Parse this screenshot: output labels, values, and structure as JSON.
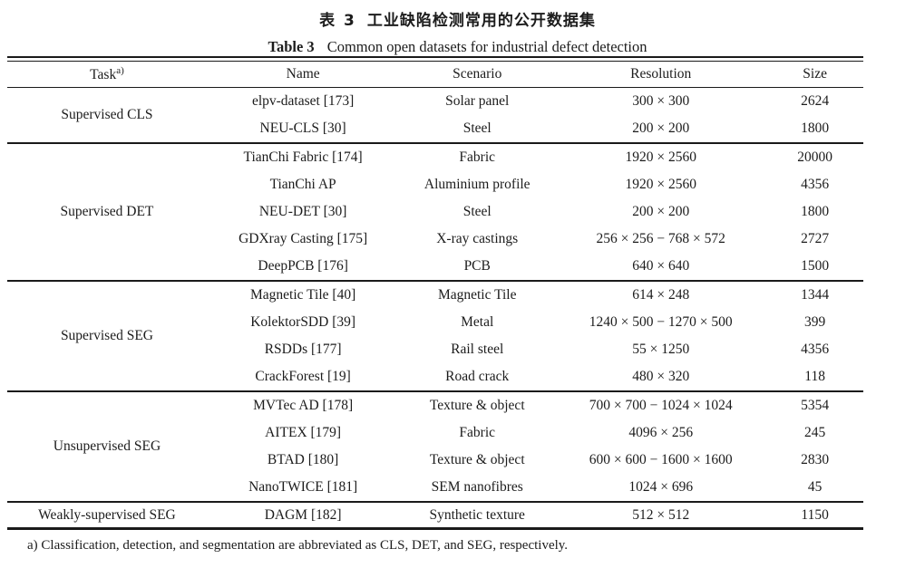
{
  "page": {
    "background": "#ffffff",
    "text_color": "#1c1c1c",
    "rule_color": "#1a1a1a"
  },
  "title": {
    "zh_label": "表 3",
    "zh_text": "工业缺陷检测常用的公开数据集",
    "en_label": "Table 3",
    "en_text": "Common open datasets for industrial defect detection"
  },
  "table": {
    "headers": {
      "task": "Task",
      "task_sup": "a)",
      "name": "Name",
      "scenario": "Scenario",
      "resolution": "Resolution",
      "size": "Size"
    },
    "groups": [
      {
        "task": "Supervised CLS",
        "rows": [
          {
            "name": "elpv-dataset [173]",
            "scenario": "Solar panel",
            "resolution": "300 × 300",
            "size": "2624"
          },
          {
            "name": "NEU-CLS [30]",
            "scenario": "Steel",
            "resolution": "200 × 200",
            "size": "1800"
          }
        ]
      },
      {
        "task": "Supervised DET",
        "rows": [
          {
            "name": "TianChi Fabric [174]",
            "scenario": "Fabric",
            "resolution": "1920 × 2560",
            "size": "20000"
          },
          {
            "name": "TianChi AP",
            "scenario": "Aluminium profile",
            "resolution": "1920 × 2560",
            "size": "4356"
          },
          {
            "name": "NEU-DET [30]",
            "scenario": "Steel",
            "resolution": "200 × 200",
            "size": "1800"
          },
          {
            "name": "GDXray Casting [175]",
            "scenario": "X-ray castings",
            "resolution": "256 × 256 − 768 × 572",
            "size": "2727"
          },
          {
            "name": "DeepPCB [176]",
            "scenario": "PCB",
            "resolution": "640 × 640",
            "size": "1500"
          }
        ]
      },
      {
        "task": "Supervised SEG",
        "rows": [
          {
            "name": "Magnetic Tile [40]",
            "scenario": "Magnetic Tile",
            "resolution": "614 × 248",
            "size": "1344"
          },
          {
            "name": "KolektorSDD [39]",
            "scenario": "Metal",
            "resolution": "1240 × 500 − 1270 × 500",
            "size": "399"
          },
          {
            "name": "RSDDs [177]",
            "scenario": "Rail steel",
            "resolution": "55 × 1250",
            "size": "4356"
          },
          {
            "name": "CrackForest [19]",
            "scenario": "Road crack",
            "resolution": "480 × 320",
            "size": "118"
          }
        ]
      },
      {
        "task": "Unsupervised SEG",
        "rows": [
          {
            "name": "MVTec AD [178]",
            "scenario": "Texture & object",
            "resolution": "700 × 700 − 1024 × 1024",
            "size": "5354"
          },
          {
            "name": "AITEX [179]",
            "scenario": "Fabric",
            "resolution": "4096 × 256",
            "size": "245"
          },
          {
            "name": "BTAD [180]",
            "scenario": "Texture & object",
            "resolution": "600 × 600 − 1600 × 1600",
            "size": "2830"
          },
          {
            "name": "NanoTWICE [181]",
            "scenario": "SEM nanofibres",
            "resolution": "1024 × 696",
            "size": "45"
          }
        ]
      },
      {
        "task": "Weakly-supervised SEG",
        "rows": [
          {
            "name": "DAGM [182]",
            "scenario": "Synthetic texture",
            "resolution": "512 × 512",
            "size": "1150"
          }
        ]
      }
    ]
  },
  "footnote": "a) Classification, detection, and segmentation are abbreviated as CLS, DET, and SEG, respectively."
}
